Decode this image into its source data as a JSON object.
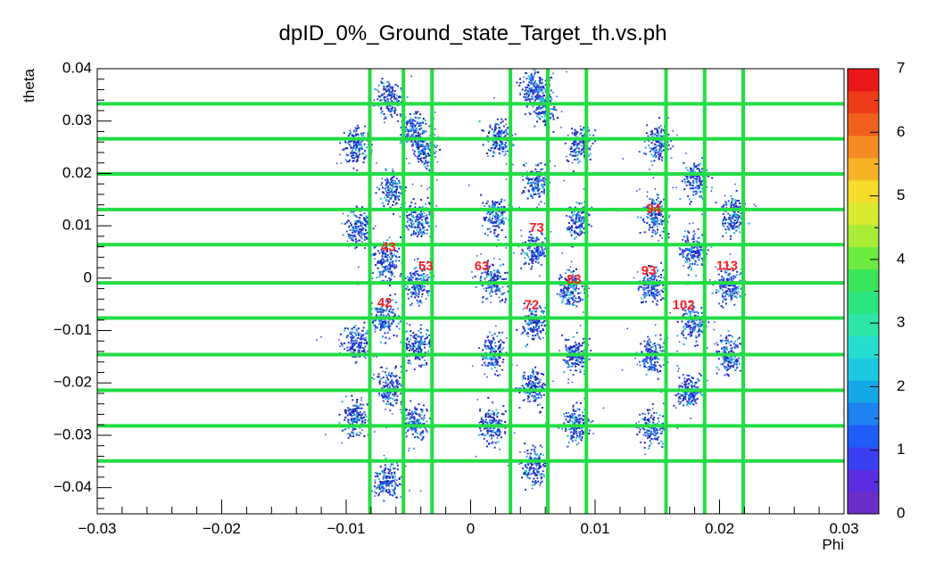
{
  "chart_data": {
    "type": "heatmap",
    "title": "dpID_0%_Ground_state_Target_th.vs.ph",
    "xlabel": "Phi",
    "ylabel": "theta",
    "xlim": [
      -0.03,
      0.03
    ],
    "ylim": [
      -0.045,
      0.04
    ],
    "x_ticks": [
      {
        "v": -0.03,
        "label": "−0.03"
      },
      {
        "v": -0.02,
        "label": "−0.02"
      },
      {
        "v": -0.01,
        "label": "−0.01"
      },
      {
        "v": 0,
        "label": "0"
      },
      {
        "v": 0.01,
        "label": "0.01"
      },
      {
        "v": 0.02,
        "label": "0.02"
      },
      {
        "v": 0.03,
        "label": "0.03"
      }
    ],
    "y_ticks": [
      {
        "v": 0.04,
        "label": "0.04"
      },
      {
        "v": 0.03,
        "label": "0.03"
      },
      {
        "v": 0.02,
        "label": "0.02"
      },
      {
        "v": 0.01,
        "label": "0.01"
      },
      {
        "v": 0,
        "label": "0"
      },
      {
        "v": -0.01,
        "label": "−0.01"
      },
      {
        "v": -0.02,
        "label": "−0.02"
      },
      {
        "v": -0.03,
        "label": "−0.03"
      },
      {
        "v": -0.04,
        "label": "−0.04"
      }
    ],
    "colorbar": {
      "min": 0,
      "max": 7,
      "ticks": [
        "0",
        "1",
        "2",
        "3",
        "4",
        "5",
        "6",
        "7"
      ],
      "colors": [
        "#6a2ec8",
        "#5a2ee0",
        "#3a3ff2",
        "#1f5cf8",
        "#1d82f2",
        "#15a8e8",
        "#1cc8e0",
        "#26ded0",
        "#2ee6a8",
        "#2ee680",
        "#3ae65a",
        "#6cea40",
        "#a8ec36",
        "#d8ea30",
        "#f6dc2a",
        "#f8b426",
        "#f68a22",
        "#f2601e",
        "#ee3c1a",
        "#e81818"
      ]
    },
    "grid_lines": {
      "vertical_x": [
        -0.0081,
        -0.0054,
        -0.0031,
        0.0032,
        0.0062,
        0.0093,
        0.0157,
        0.0188,
        0.0219
      ],
      "horizontal_y": [
        0.0333,
        0.0266,
        0.0199,
        0.0131,
        0.0064,
        -0.0009,
        -0.0076,
        -0.0146,
        -0.0214,
        -0.0282,
        -0.0349
      ],
      "color": "#22dd44"
    },
    "clusters": [
      {
        "x": -0.0066,
        "y": 0.0345
      },
      {
        "x": -0.0047,
        "y": 0.0285
      },
      {
        "x": -0.0038,
        "y": 0.025
      },
      {
        "x": -0.0093,
        "y": 0.0255
      },
      {
        "x": -0.0063,
        "y": 0.017
      },
      {
        "x": -0.0042,
        "y": 0.0115
      },
      {
        "x": -0.0091,
        "y": 0.01
      },
      {
        "x": -0.0068,
        "y": 0.003
      },
      {
        "x": -0.0044,
        "y": -0.001
      },
      {
        "x": -0.007,
        "y": -0.0075
      },
      {
        "x": -0.0093,
        "y": -0.0125
      },
      {
        "x": -0.0043,
        "y": -0.013
      },
      {
        "x": -0.0065,
        "y": -0.0205
      },
      {
        "x": -0.0093,
        "y": -0.0265
      },
      {
        "x": -0.0045,
        "y": -0.0275
      },
      {
        "x": -0.0068,
        "y": -0.0385
      },
      {
        "x": 0.005,
        "y": 0.036
      },
      {
        "x": 0.0058,
        "y": 0.033
      },
      {
        "x": 0.0022,
        "y": 0.027
      },
      {
        "x": 0.0088,
        "y": 0.0255
      },
      {
        "x": 0.0052,
        "y": 0.0185
      },
      {
        "x": 0.002,
        "y": 0.012
      },
      {
        "x": 0.0086,
        "y": 0.011
      },
      {
        "x": 0.0051,
        "y": 0.0055
      },
      {
        "x": 0.0017,
        "y": -0.0005
      },
      {
        "x": 0.008,
        "y": -0.002
      },
      {
        "x": 0.005,
        "y": -0.0085
      },
      {
        "x": 0.0018,
        "y": -0.014
      },
      {
        "x": 0.0083,
        "y": -0.0145
      },
      {
        "x": 0.005,
        "y": -0.0205
      },
      {
        "x": 0.0017,
        "y": -0.028
      },
      {
        "x": 0.0083,
        "y": -0.028
      },
      {
        "x": 0.005,
        "y": -0.036
      },
      {
        "x": 0.015,
        "y": 0.026
      },
      {
        "x": 0.018,
        "y": 0.019
      },
      {
        "x": 0.0148,
        "y": 0.012
      },
      {
        "x": 0.021,
        "y": 0.012
      },
      {
        "x": 0.0178,
        "y": 0.0055
      },
      {
        "x": 0.0145,
        "y": -0.0015
      },
      {
        "x": 0.0207,
        "y": -0.0015
      },
      {
        "x": 0.0178,
        "y": -0.0085
      },
      {
        "x": 0.0145,
        "y": -0.0145
      },
      {
        "x": 0.0208,
        "y": -0.0145
      },
      {
        "x": 0.0175,
        "y": -0.0215
      },
      {
        "x": 0.0145,
        "y": -0.0285
      }
    ],
    "annotations": [
      {
        "text": "43",
        "x": -0.0066,
        "y": 0.0058
      },
      {
        "text": "53",
        "x": -0.0036,
        "y": 0.0022
      },
      {
        "text": "63",
        "x": 0.0009,
        "y": 0.0022
      },
      {
        "text": "73",
        "x": 0.0053,
        "y": 0.0095
      },
      {
        "text": "83",
        "x": 0.0083,
        "y": -0.0004
      },
      {
        "text": "93",
        "x": 0.0143,
        "y": 0.0013
      },
      {
        "text": "94",
        "x": 0.0147,
        "y": 0.0132
      },
      {
        "text": "113",
        "x": 0.0206,
        "y": 0.0023
      },
      {
        "text": "42",
        "x": -0.0069,
        "y": -0.0048
      },
      {
        "text": "72",
        "x": 0.0049,
        "y": -0.0052
      },
      {
        "text": "102",
        "x": 0.0171,
        "y": -0.0052
      }
    ],
    "annotation_color": "#ff1e1e",
    "grid": false,
    "legend": "right (color scale)"
  }
}
